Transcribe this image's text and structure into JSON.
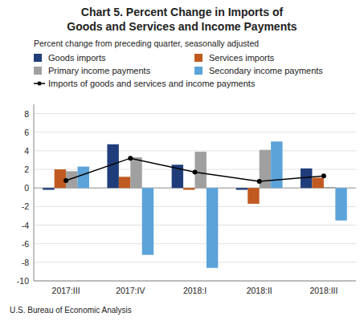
{
  "chart_data": {
    "type": "bar",
    "title": [
      "Chart 5. Percent Change in Imports of",
      "Goods and Services and Income Payments"
    ],
    "subtitle": "Percent change from preceding quarter, seasonally adjusted",
    "annotations": [
      "U.S. Bureau of Economic Analysis"
    ],
    "categories": [
      "2017:III",
      "2017:IV",
      "2018:I",
      "2018:II",
      "2018:III"
    ],
    "series": [
      {
        "name": "Goods imports",
        "color": "#1f3d7a",
        "values": [
          -0.2,
          4.7,
          2.5,
          -0.2,
          2.1
        ]
      },
      {
        "name": "Services imports",
        "color": "#c05a20",
        "values": [
          2.0,
          1.2,
          -0.2,
          -1.7,
          1.1
        ]
      },
      {
        "name": "Primary income payments",
        "color": "#a0a0a0",
        "values": [
          1.8,
          3.3,
          3.9,
          4.1,
          0.1
        ]
      },
      {
        "name": "Secondary income payments",
        "color": "#5ba3d9",
        "values": [
          2.3,
          -7.2,
          -8.6,
          5.0,
          -3.5
        ]
      },
      {
        "name": "Imports of goods and services and income payments",
        "type": "line",
        "color": "#000000",
        "marker": "circle",
        "values": [
          0.8,
          3.2,
          1.7,
          0.7,
          1.3
        ]
      }
    ],
    "ylim": [
      -10,
      9
    ],
    "yticks": [
      -10,
      -8,
      -6,
      -4,
      -2,
      0,
      2,
      4,
      6,
      8
    ],
    "grid": true,
    "legend": "top"
  }
}
